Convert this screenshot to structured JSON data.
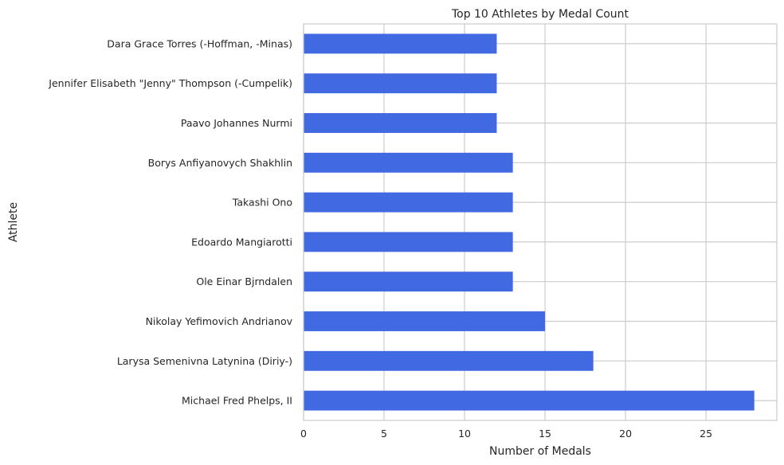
{
  "chart_data": {
    "type": "bar",
    "orientation": "horizontal",
    "title": "Top 10 Athletes by Medal Count",
    "xlabel": "Number of Medals",
    "ylabel": "Athlete",
    "categories": [
      "Michael Fred Phelps, II",
      "Larysa Semenivna Latynina (Diriy-)",
      "Nikolay Yefimovich Andrianov",
      "Ole Einar Bjrndalen",
      "Edoardo Mangiarotti",
      "Takashi Ono",
      "Borys Anfiyanovych Shakhlin",
      "Paavo Johannes Nurmi",
      "Jennifer Elisabeth \"Jenny\" Thompson (-Cumpelik)",
      "Dara Grace Torres (-Hoffman, -Minas)"
    ],
    "values": [
      28,
      18,
      15,
      13,
      13,
      13,
      13,
      12,
      12,
      12
    ],
    "xlim": [
      0,
      29.4
    ],
    "xticks": [
      0,
      5,
      10,
      15,
      20,
      25
    ],
    "grid": true,
    "bar_color": "#4169e1"
  }
}
